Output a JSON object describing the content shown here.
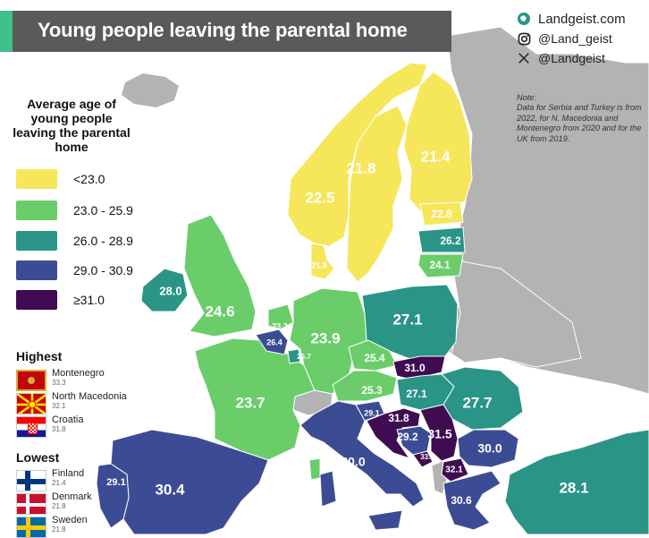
{
  "title": "Young people leaving the parental home",
  "brand": {
    "site": "Landgeist.com",
    "instagram": "@Land_geist",
    "x": "@Landgeist"
  },
  "note": {
    "heading": "Note:",
    "text": "Data for Serbia and Turkey is from 2022, for N. Macedonia and Montenegro from 2020 and for the UK from 2019."
  },
  "legend": {
    "title": "Average age of young people leaving the parental home",
    "items": [
      {
        "label": "<23.0",
        "color": "#f6e65a"
      },
      {
        "label": "23.0 - 25.9",
        "color": "#6acd6a"
      },
      {
        "label": "26.0 - 28.9",
        "color": "#2a9487"
      },
      {
        "label": "29.0 - 30.9",
        "color": "#3c4c94"
      },
      {
        "label": "≥31.0",
        "color": "#3f0c52"
      }
    ]
  },
  "highest": {
    "title": "Highest",
    "items": [
      {
        "country": "Montenegro",
        "value": "33.3",
        "flag": "montenegro-flag-icon"
      },
      {
        "country": "North Macedonia",
        "value": "32.1",
        "flag": "north-macedonia-flag-icon"
      },
      {
        "country": "Croatia",
        "value": "31.8",
        "flag": "croatia-flag-icon"
      }
    ]
  },
  "lowest": {
    "title": "Lowest",
    "items": [
      {
        "country": "Finland",
        "value": "21.4",
        "flag": "finland-flag-icon"
      },
      {
        "country": "Denmark",
        "value": "21.8",
        "flag": "denmark-flag-icon"
      },
      {
        "country": "Sweden",
        "value": "21.8",
        "flag": "sweden-flag-icon"
      }
    ]
  },
  "map_values": {
    "norway": "22.5",
    "sweden": "21.8",
    "finland": "21.4",
    "estonia": "22.8",
    "latvia": "26.2",
    "lithuania": "24.1",
    "denmark": "21.8",
    "ireland": "28.0",
    "uk": "24.6",
    "netherlands": "23.2",
    "belgium": "26.4",
    "luxembourg": "26.7",
    "germany": "23.9",
    "poland": "27.1",
    "czechia": "25.4",
    "slovakia": "31.0",
    "austria": "25.3",
    "hungary": "27.1",
    "romania": "27.7",
    "slovenia": "29.1",
    "croatia": "31.8",
    "bosnia": "29.2",
    "serbia": "31.5",
    "montenegro": "33.3",
    "north_macedonia": "32.1",
    "bulgaria": "30.0",
    "italy": "30.0",
    "france": "23.7",
    "spain": "30.4",
    "portugal": "29.1",
    "greece": "30.6",
    "turkey": "28.1"
  }
}
